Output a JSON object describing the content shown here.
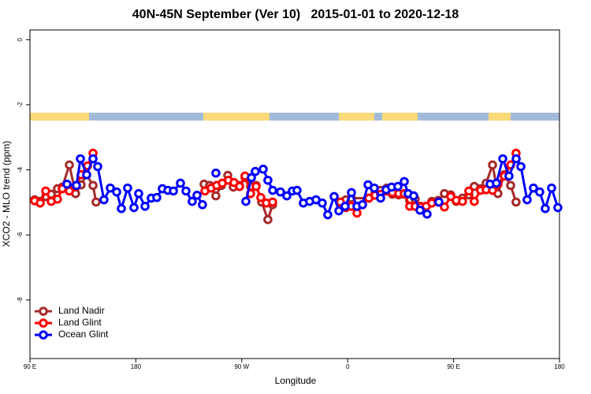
{
  "chart_data": {
    "type": "line",
    "title": "40N-45N September (Ver 10)   2015-01-01 to 2020-12-18",
    "x_label": "Longitude",
    "y_label": "XCO2 - MLO trend (ppm)",
    "xlim": [
      90,
      540
    ],
    "xticks": [
      {
        "value": 90,
        "label": "90 E"
      },
      180,
      {
        "value": 270,
        "label": "90 W"
      },
      {
        "value": 360,
        "label": "0"
      },
      {
        "value": 450,
        "label": "90 E"
      },
      {
        "value": 540,
        "label": "180"
      }
    ],
    "ylim": [
      -9.8,
      0.3
    ],
    "yticks": [
      0,
      -2,
      -4,
      -6,
      -8
    ],
    "legend": "bottom-left",
    "series": [
      {
        "name": "Land Nadir",
        "color": "#a52a2a",
        "x": [
          94.0,
          98.7,
          103.4,
          108.1,
          113.4,
          117.5,
          123.5,
          128.8,
          133.5,
          138.2,
          143.6,
          146.2,
          null,
          238.0,
          242.7,
          248.0,
          252.7,
          258.1,
          262.8,
          268.1,
          272.8,
          277.5,
          282.2,
          286.9,
          292.2,
          296.2,
          null,
          353.8,
          358.5,
          363.2,
          378.0,
          383.3,
          388.0,
          393.3,
          398.0,
          403.4,
          408.1,
          412.7,
          417.4,
          422.1,
          426.8,
          431.5,
          436.9,
          442.2,
          447.6,
          452.3,
          457.6,
          463.0,
          467.6,
          473.0,
          477.7,
          483.1,
          487.7,
          493.1,
          498.5,
          503.1
        ],
        "values": [
          -4.92,
          -4.97,
          -4.82,
          -4.75,
          -4.58,
          -4.53,
          -3.85,
          -4.73,
          -4.46,
          -4.15,
          -4.48,
          -4.99,
          null,
          -4.44,
          -4.48,
          -4.8,
          -4.48,
          -4.17,
          -4.53,
          -4.48,
          -4.24,
          -4.51,
          -4.48,
          -4.99,
          -5.53,
          -5.07,
          null,
          -5.04,
          -4.92,
          -4.87,
          -4.87,
          -4.7,
          -4.63,
          -4.56,
          -4.75,
          -4.77,
          -4.75,
          -4.94,
          -4.9,
          -5.12,
          -5.12,
          -4.97,
          -4.94,
          -4.73,
          -4.77,
          -4.97,
          -4.87,
          -4.77,
          -4.51,
          -4.58,
          -4.41,
          -3.85,
          -4.73,
          -4.15,
          -4.48,
          -4.99
        ]
      },
      {
        "name": "Land Glint",
        "color": "#ff0000",
        "x": [
          94.0,
          98.7,
          103.4,
          108.1,
          113.4,
          117.5,
          123.5,
          128.8,
          133.5,
          138.9,
          143.6,
          null,
          238.7,
          244.0,
          248.7,
          253.4,
          258.7,
          263.4,
          268.1,
          272.8,
          277.5,
          282.2,
          286.2,
          290.9,
          296.2,
          null,
          353.8,
          358.5,
          363.2,
          367.9,
          372.6,
          378.0,
          383.3,
          388.0,
          393.3,
          398.0,
          403.4,
          408.1,
          412.7,
          417.4,
          422.1,
          426.8,
          431.5,
          436.9,
          442.2,
          447.6,
          452.3,
          457.6,
          463.0,
          467.6,
          473.0,
          477.7,
          483.1,
          487.7,
          493.1,
          498.5,
          503.1
        ],
        "values": [
          -4.95,
          -5.02,
          -4.65,
          -4.97,
          -4.9,
          -4.58,
          -4.65,
          -4.51,
          -4.15,
          -3.88,
          -3.49,
          null,
          -4.65,
          -4.56,
          -4.48,
          -4.41,
          -4.32,
          -4.39,
          -4.51,
          -4.19,
          -4.73,
          -4.51,
          -4.85,
          -5.02,
          -4.99,
          null,
          -4.99,
          -5.16,
          -5.12,
          -5.33,
          -5.07,
          -4.87,
          -4.78,
          -4.75,
          -4.65,
          -4.7,
          -4.73,
          -4.73,
          -5.12,
          -5.12,
          -5.14,
          -5.12,
          -5.02,
          -4.99,
          -5.14,
          -4.82,
          -4.94,
          -4.97,
          -4.65,
          -4.97,
          -4.63,
          -4.61,
          -4.63,
          -4.44,
          -4.19,
          -3.85,
          -3.49
        ]
      },
      {
        "name": "Ocean Glint",
        "color": "#0000ff",
        "x": [
          121.5,
          129.5,
          132.9,
          138.2,
          143.6,
          147.6,
          152.9,
          158.3,
          163.7,
          167.7,
          173.0,
          178.4,
          182.4,
          187.8,
          193.1,
          197.8,
          202.5,
          207.2,
          211.9,
          217.9,
          222.6,
          227.9,
          232.0,
          236.6,
          null,
          248.0,
          null,
          273.5,
          278.2,
          281.5,
          288.2,
          292.2,
          296.3,
          302.9,
          308.3,
          313.0,
          317.0,
          322.3,
          327.7,
          333.1,
          338.4,
          343.1,
          348.5,
          352.5,
          357.8,
          363.2,
          367.9,
          372.6,
          377.3,
          382.6,
          388.0,
          392.7,
          397.3,
          402.7,
          408.1,
          411.4,
          416.1,
          421.5,
          427.5,
          null,
          437.5,
          null,
          481.0,
          486.4,
          491.8,
          497.1,
          503.2,
          507.2,
          512.5,
          517.9,
          523.2,
          527.9,
          533.3,
          538.6
        ],
        "values": [
          -4.44,
          -4.48,
          -3.66,
          -4.15,
          -3.66,
          -3.9,
          -4.92,
          -4.56,
          -4.68,
          -5.19,
          -4.56,
          -5.16,
          -4.73,
          -5.12,
          -4.87,
          -4.85,
          -4.58,
          -4.63,
          -4.65,
          -4.41,
          -4.65,
          -4.97,
          -4.78,
          -5.07,
          null,
          -4.1,
          null,
          -4.97,
          -4.24,
          -4.05,
          -3.98,
          -4.32,
          -4.63,
          -4.68,
          -4.8,
          -4.65,
          -4.63,
          -5.02,
          -4.97,
          -4.92,
          -5.02,
          -5.38,
          -4.82,
          -5.26,
          -5.12,
          -4.7,
          -5.12,
          -5.07,
          -4.46,
          -4.56,
          -4.87,
          -4.61,
          -4.53,
          -4.51,
          -4.36,
          -4.73,
          -4.8,
          -5.24,
          -5.36,
          null,
          -4.99,
          null,
          -4.44,
          -4.41,
          -3.66,
          -4.19,
          -3.66,
          -3.9,
          -4.92,
          -4.56,
          -4.68,
          -5.19,
          -4.56,
          -5.16
        ]
      }
    ]
  }
}
